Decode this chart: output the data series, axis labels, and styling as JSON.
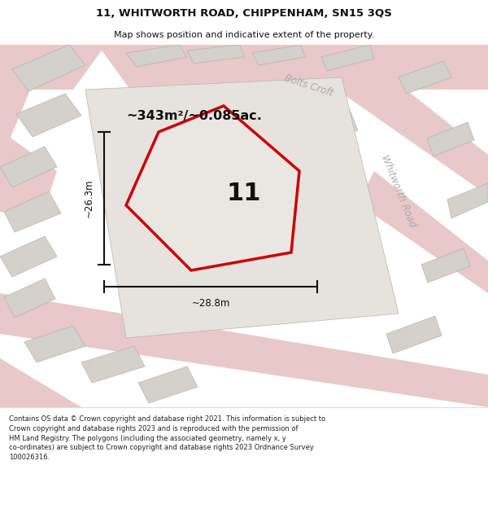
{
  "title": "11, WHITWORTH ROAD, CHIPPENHAM, SN15 3QS",
  "subtitle": "Map shows position and indicative extent of the property.",
  "footer": "Contains OS data © Crown copyright and database right 2021. This information is subject to\nCrown copyright and database rights 2023 and is reproduced with the permission of\nHM Land Registry. The polygons (including the associated geometry, namely x, y\nco-ordinates) are subject to Crown copyright and database rights 2023 Ordnance Survey\n100026316.",
  "area_label": "~343m²/~0.085ac.",
  "property_number": "11",
  "dim_width": "~28.8m",
  "dim_height": "~26.3m",
  "map_bg": "#f2efec",
  "road_color": "#e8c8c8",
  "building_color": "#d4d0cc",
  "building_edge": "#b8b4b0",
  "property_fill": "#eae6e2",
  "property_edge": "#cc0000",
  "road_label_color": "#b0aaaa",
  "dim_color": "#111111",
  "title_color": "#111111",
  "footer_color": "#222222",
  "white": "#ffffff"
}
